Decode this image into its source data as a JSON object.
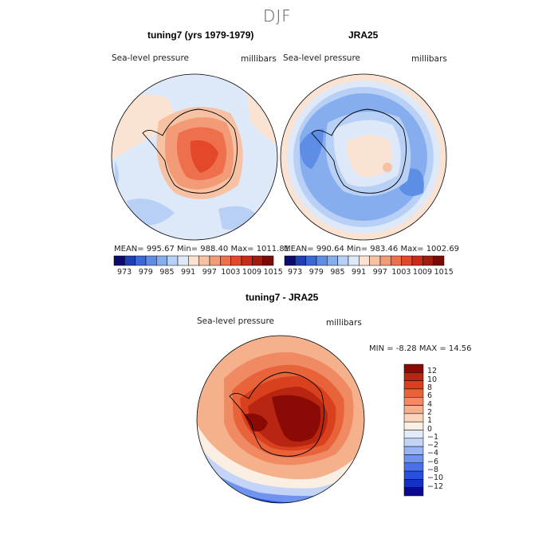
{
  "figure": {
    "title": "DJF",
    "panels": [
      {
        "title": "tuning7 (yrs 1979-1979)",
        "left_label": "Sea-level pressure",
        "right_label": "millibars",
        "stats": "MEAN= 995.67   Min= 988.40   Max= 1011.81"
      },
      {
        "title": "JRA25",
        "left_label": "Sea-level pressure",
        "right_label": "millibars",
        "stats": "MEAN= 990.64   Min= 983.46   Max= 1002.69"
      },
      {
        "title": "tuning7 - JRA25",
        "left_label": "Sea-level pressure",
        "right_label": "millibars",
        "stats": "MIN =   -8.28  MAX =   14.56"
      }
    ],
    "abs_colorbar": {
      "colors": [
        "#0c0a6e",
        "#1f3fb5",
        "#3b68d8",
        "#5e8de6",
        "#86aeef",
        "#b8d0f5",
        "#dde8f8",
        "#fbe3d4",
        "#f7c1a3",
        "#f39a77",
        "#ee6f4c",
        "#e4482b",
        "#c82b17",
        "#a31b0c",
        "#7a0a05"
      ],
      "tick_labels": [
        "973",
        "979",
        "985",
        "991",
        "997",
        "1003",
        "1009",
        "1015"
      ]
    },
    "diff_colorbar": {
      "colors": [
        "#0b0a8a",
        "#1330c8",
        "#2550e0",
        "#4a72e8",
        "#6f93ef",
        "#98b4f4",
        "#c3d4f8",
        "#e2ebfa",
        "#fbeee2",
        "#f9d3bb",
        "#f5b08c",
        "#f08a62",
        "#e8623a",
        "#d8401e",
        "#b82510",
        "#8a0a05"
      ],
      "tick_labels": [
        "12",
        "10",
        "8",
        "6",
        "4",
        "2",
        "1",
        "0",
        "−1",
        "−2",
        "−4",
        "−6",
        "−8",
        "−10",
        "−12"
      ]
    }
  }
}
